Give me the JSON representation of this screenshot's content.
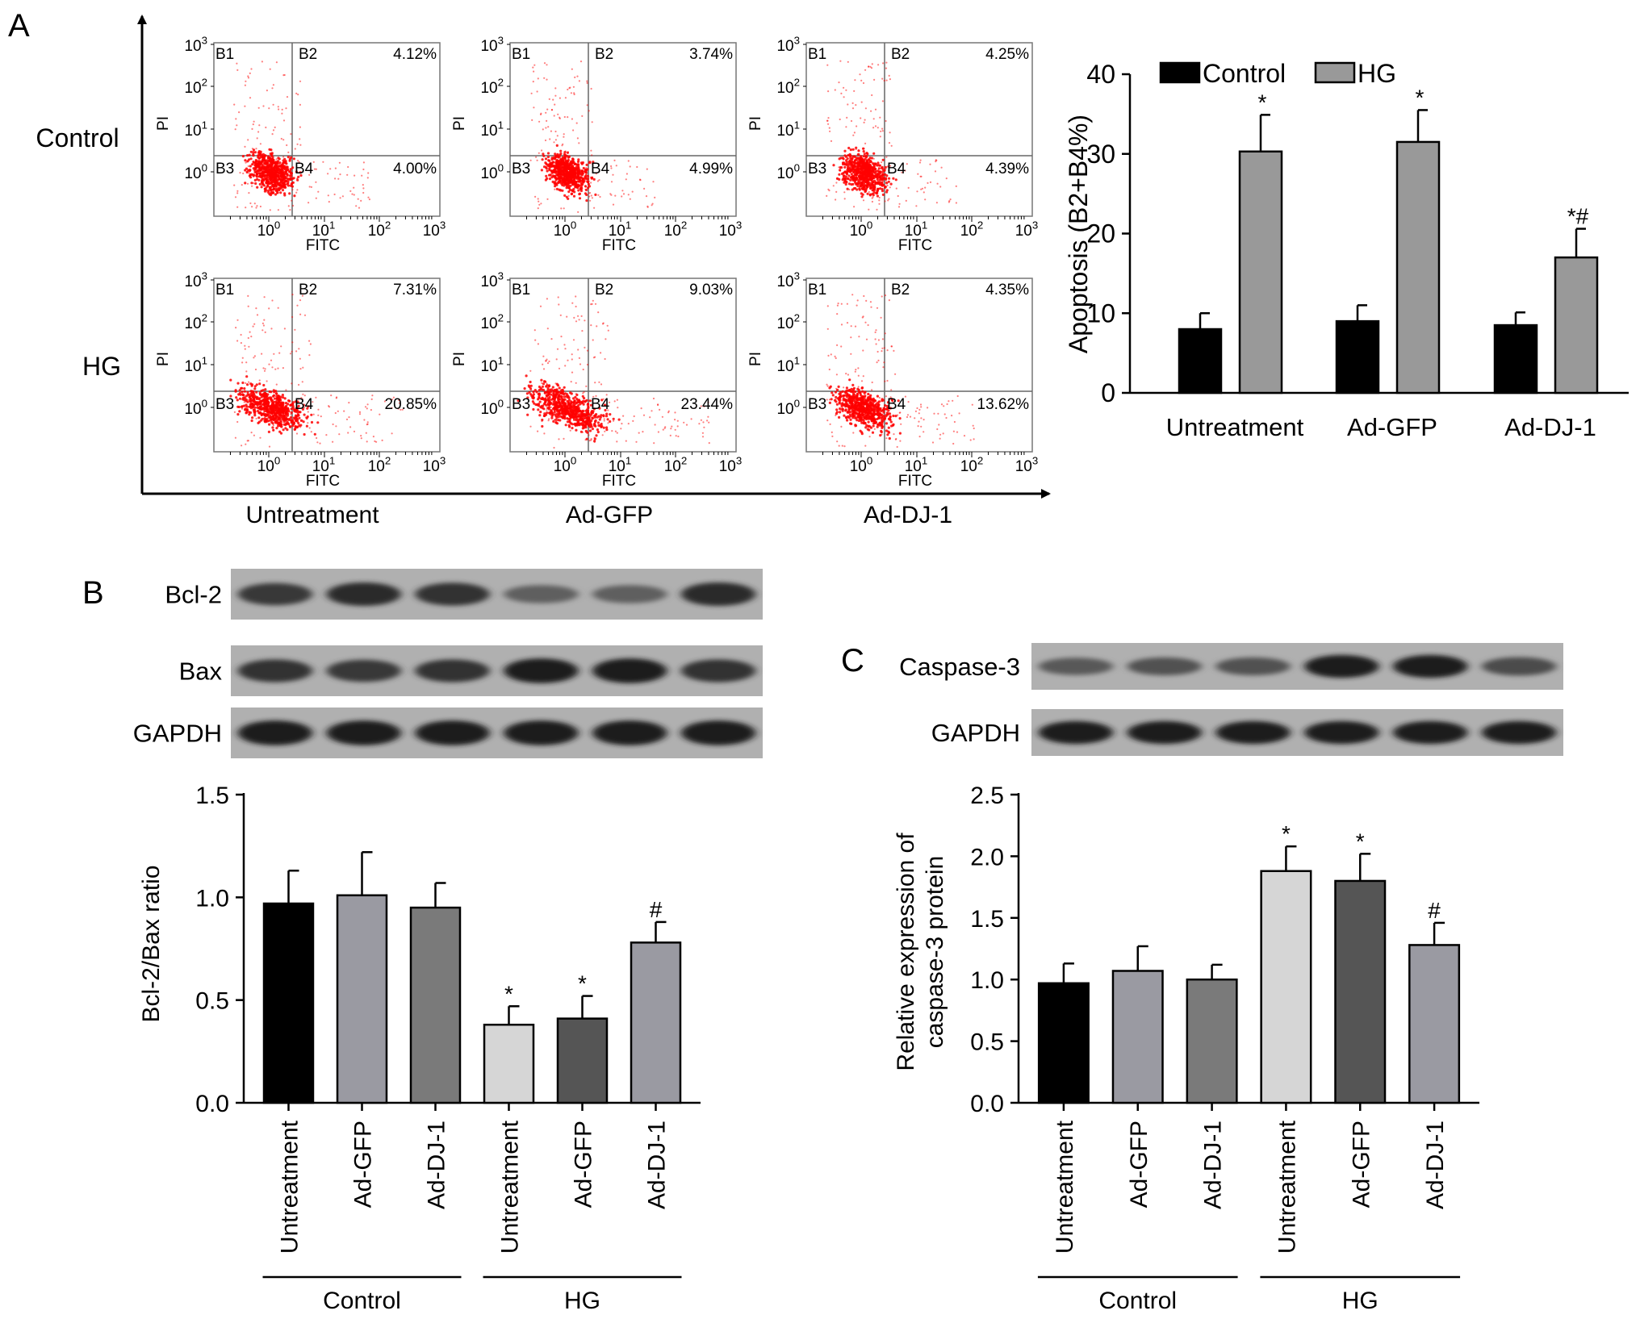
{
  "panel_labels": {
    "a": "A",
    "b": "B",
    "c": "C"
  },
  "flow": {
    "row_labels": [
      "Control",
      "HG"
    ],
    "col_labels": [
      "Untreatment",
      "Ad-GFP",
      "Ad-DJ-1"
    ],
    "quadrant_labels": [
      "B1",
      "B2",
      "B3",
      "B4"
    ],
    "x_axis_label": "FITC",
    "y_axis_label": "PI",
    "x_ticks": [
      {
        "b": "10",
        "e": "0"
      },
      {
        "b": "10",
        "e": "1"
      },
      {
        "b": "10",
        "e": "2"
      },
      {
        "b": "10",
        "e": "3"
      }
    ],
    "y_ticks": [
      {
        "b": "10",
        "e": "0"
      },
      {
        "b": "10",
        "e": "1"
      },
      {
        "b": "10",
        "e": "2"
      },
      {
        "b": "10",
        "e": "3"
      }
    ],
    "dot_color": "#ff0000",
    "plots": [
      {
        "row": 0,
        "col": 0,
        "b2": "4.12%",
        "b4": "4.00%",
        "spread": 0.8
      },
      {
        "row": 0,
        "col": 1,
        "b2": "3.74%",
        "b4": "4.99%",
        "spread": 0.7
      },
      {
        "row": 0,
        "col": 2,
        "b2": "4.25%",
        "b4": "4.39%",
        "spread": 0.75
      },
      {
        "row": 1,
        "col": 0,
        "b2": "7.31%",
        "b4": "20.85%",
        "spread": 1.15
      },
      {
        "row": 1,
        "col": 1,
        "b2": "9.03%",
        "b4": "23.44%",
        "spread": 1.25
      },
      {
        "row": 1,
        "col": 2,
        "b2": "4.35%",
        "b4": "13.62%",
        "spread": 0.95
      }
    ]
  },
  "blots": {
    "b": {
      "labels": [
        "Bcl-2",
        "Bax",
        "GAPDH"
      ],
      "intensity": [
        [
          0.75,
          0.85,
          0.8,
          0.45,
          0.45,
          0.85
        ],
        [
          0.8,
          0.75,
          0.8,
          0.95,
          0.95,
          0.8
        ],
        [
          0.95,
          0.95,
          0.95,
          0.95,
          0.95,
          0.95
        ]
      ]
    },
    "c": {
      "labels": [
        "Caspase-3",
        "GAPDH"
      ],
      "intensity": [
        [
          0.5,
          0.55,
          0.55,
          0.95,
          0.95,
          0.6
        ],
        [
          0.95,
          0.95,
          0.95,
          0.95,
          0.95,
          0.95
        ]
      ]
    }
  },
  "chart_data": [
    {
      "id": "apoptosis",
      "type": "bar",
      "categories": [
        "Untreatment",
        "Ad-GFP",
        "Ad-DJ-1"
      ],
      "series": [
        {
          "name": "Control",
          "values": [
            8,
            9,
            8.5
          ],
          "errors": [
            2,
            2,
            1.6
          ],
          "color": "#000000",
          "annotations": [
            "",
            "",
            ""
          ]
        },
        {
          "name": "HG",
          "values": [
            30.3,
            31.5,
            17
          ],
          "errors": [
            4.6,
            4,
            3.6
          ],
          "color": "#999999",
          "annotations": [
            "*",
            "*",
            "*#"
          ]
        }
      ],
      "ylabel": "Apoptosis (B2+B4%)",
      "ylim": [
        0,
        40
      ],
      "yticks": [
        "0",
        "10",
        "20",
        "30",
        "40"
      ],
      "legend": "top"
    },
    {
      "id": "bcl2bax",
      "type": "bar",
      "categories": [
        "Untreatment",
        "Ad-GFP",
        "Ad-DJ-1",
        "Untreatment",
        "Ad-GFP",
        "Ad-DJ-1"
      ],
      "values": [
        0.97,
        1.01,
        0.95,
        0.38,
        0.41,
        0.78
      ],
      "errors": [
        0.16,
        0.21,
        0.12,
        0.09,
        0.11,
        0.1
      ],
      "colors": [
        "#000000",
        "#9a9aa2",
        "#7a7a7a",
        "#d6d6d6",
        "#555555",
        "#9a9aa2"
      ],
      "annotations": [
        "",
        "",
        "",
        "*",
        "*",
        "#"
      ],
      "groups": [
        {
          "label": "Control",
          "from": 0,
          "to": 2
        },
        {
          "label": "HG",
          "from": 3,
          "to": 5
        }
      ],
      "ylabel": "Bcl-2/Bax  ratio",
      "ylim": [
        0,
        1.5
      ],
      "yticks": [
        "0.0",
        "0.5",
        "1.0",
        "1.5"
      ]
    },
    {
      "id": "caspase3",
      "type": "bar",
      "categories": [
        "Untreatment",
        "Ad-GFP",
        "Ad-DJ-1",
        "Untreatment",
        "Ad-GFP",
        "Ad-DJ-1"
      ],
      "values": [
        0.97,
        1.07,
        1.0,
        1.88,
        1.8,
        1.28
      ],
      "errors": [
        0.16,
        0.2,
        0.12,
        0.2,
        0.22,
        0.18
      ],
      "colors": [
        "#000000",
        "#9a9aa2",
        "#7a7a7a",
        "#d6d6d6",
        "#555555",
        "#9a9aa2"
      ],
      "annotations": [
        "",
        "",
        "",
        "*",
        "*",
        "#"
      ],
      "groups": [
        {
          "label": "Control",
          "from": 0,
          "to": 2
        },
        {
          "label": "HG",
          "from": 3,
          "to": 5
        }
      ],
      "ylabel": [
        "Relative expression of",
        "caspase-3 protein"
      ],
      "ylim": [
        0,
        2.5
      ],
      "yticks": [
        "0.0",
        "0.5",
        "1.0",
        "1.5",
        "2.0",
        "2.5"
      ]
    }
  ]
}
